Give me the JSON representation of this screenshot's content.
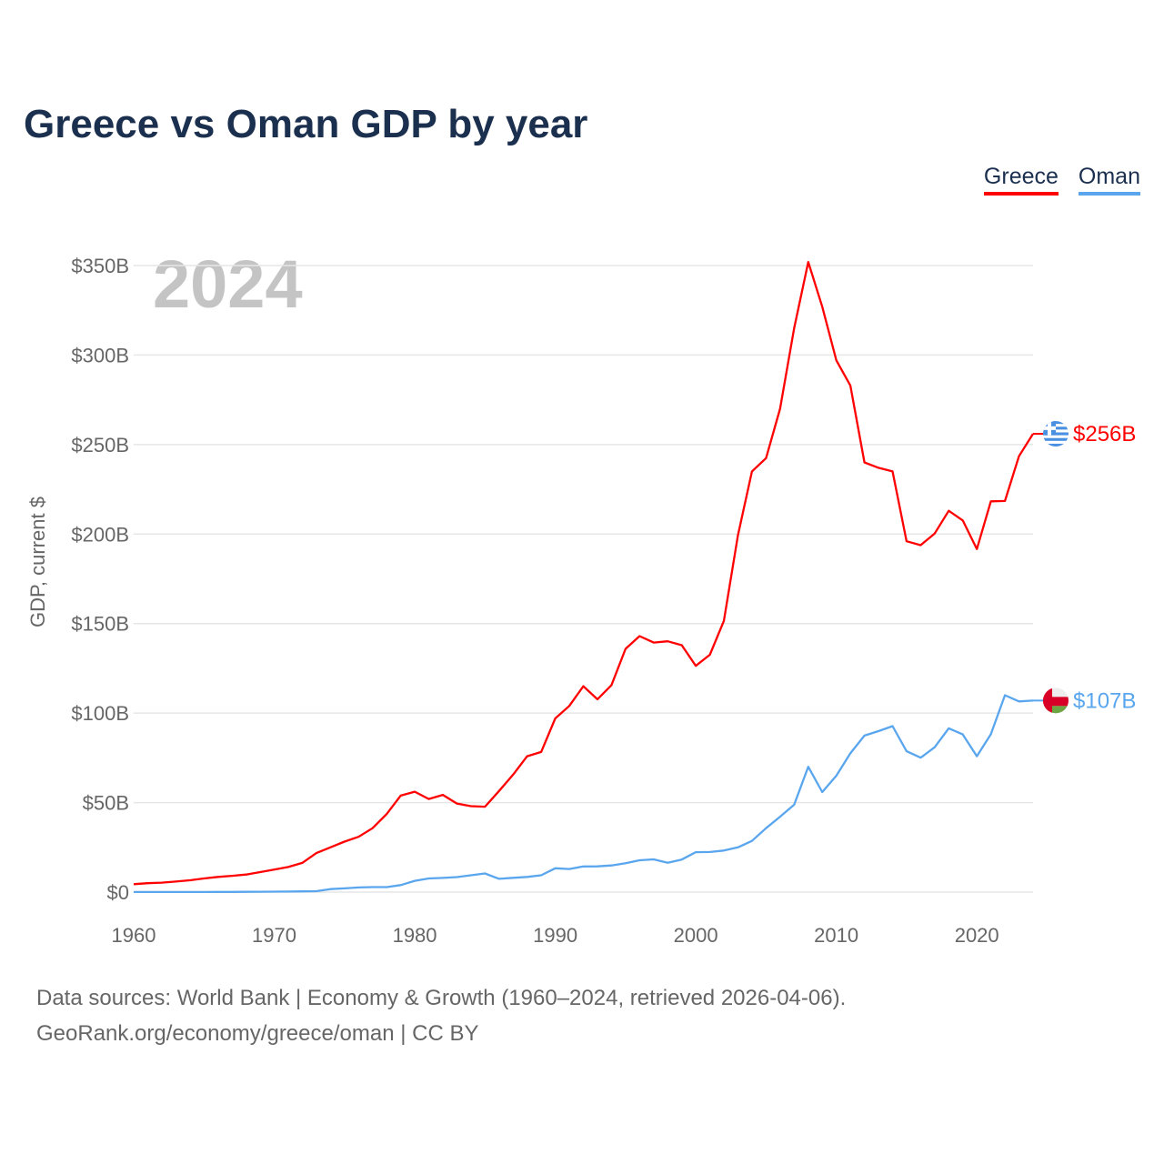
{
  "title": "Greece vs Oman GDP by year",
  "legend": [
    {
      "label": "Greece",
      "color": "#ff0000"
    },
    {
      "label": "Oman",
      "color": "#5aa6ee"
    }
  ],
  "year_watermark": "2024",
  "footer": {
    "line1": "Data sources: World Bank | Economy & Growth (1960–2024, retrieved 2026-04-06).",
    "line2": "GeoRank.org/economy/greece/oman | CC BY"
  },
  "chart_data": {
    "type": "line",
    "title": "Greece vs Oman GDP by year",
    "xlabel": "",
    "ylabel": "GDP, current $",
    "xlim": [
      1960,
      2024
    ],
    "ylim": [
      0,
      350
    ],
    "unit": "billion USD",
    "grid": true,
    "legend_position": "top-right",
    "x_ticks": [
      "1960",
      "1970",
      "1980",
      "1990",
      "2000",
      "2010",
      "2020"
    ],
    "y_ticks": [
      {
        "v": 0,
        "label": "$0"
      },
      {
        "v": 50,
        "label": "$50B"
      },
      {
        "v": 100,
        "label": "$100B"
      },
      {
        "v": 150,
        "label": "$150B"
      },
      {
        "v": 200,
        "label": "$200B"
      },
      {
        "v": 250,
        "label": "$250B"
      },
      {
        "v": 300,
        "label": "$300B"
      },
      {
        "v": 350,
        "label": "$350B"
      }
    ],
    "x_start": 1960,
    "series": [
      {
        "name": "Greece",
        "color": "#ff0000",
        "end_label": "$256B",
        "flag": "greece-flag",
        "values": [
          4.4,
          5.0,
          5.3,
          5.9,
          6.6,
          7.6,
          8.5,
          9.1,
          9.8,
          11.2,
          12.6,
          14.0,
          16.3,
          21.8,
          25.0,
          28.2,
          30.9,
          35.7,
          43.6,
          53.9,
          56.1,
          52.0,
          54.3,
          49.5,
          48.0,
          47.7,
          56.5,
          65.6,
          75.9,
          78.3,
          97.0,
          104.0,
          115.0,
          107.7,
          115.6,
          135.9,
          143.0,
          139.4,
          140.1,
          137.9,
          126.4,
          132.6,
          151.5,
          199.4,
          235.0,
          242.4,
          270.0,
          315.0,
          352.0,
          327.0,
          297.0,
          283.0,
          240.0,
          237.0,
          235.0,
          196.0,
          193.8,
          200.3,
          213.0,
          207.6,
          191.6,
          218.3,
          218.5,
          243.5,
          256.0
        ]
      },
      {
        "name": "Oman",
        "color": "#5aa6ee",
        "end_label": "$107B",
        "flag": "oman-flag",
        "values": [
          0.05,
          0.05,
          0.06,
          0.06,
          0.07,
          0.07,
          0.08,
          0.1,
          0.15,
          0.2,
          0.26,
          0.3,
          0.4,
          0.5,
          1.7,
          2.1,
          2.6,
          2.8,
          2.8,
          3.9,
          6.3,
          7.6,
          7.9,
          8.4,
          9.4,
          10.4,
          7.4,
          8.0,
          8.5,
          9.4,
          13.3,
          12.9,
          14.3,
          14.4,
          14.9,
          16.1,
          17.8,
          18.3,
          16.4,
          18.2,
          22.3,
          22.4,
          23.2,
          25.0,
          28.6,
          35.7,
          42.1,
          48.8,
          70.0,
          55.9,
          65.0,
          77.5,
          87.4,
          89.9,
          92.7,
          78.7,
          75.1,
          80.9,
          91.5,
          88.1,
          75.9,
          88.2,
          110.0,
          106.5,
          107.0
        ]
      }
    ]
  }
}
